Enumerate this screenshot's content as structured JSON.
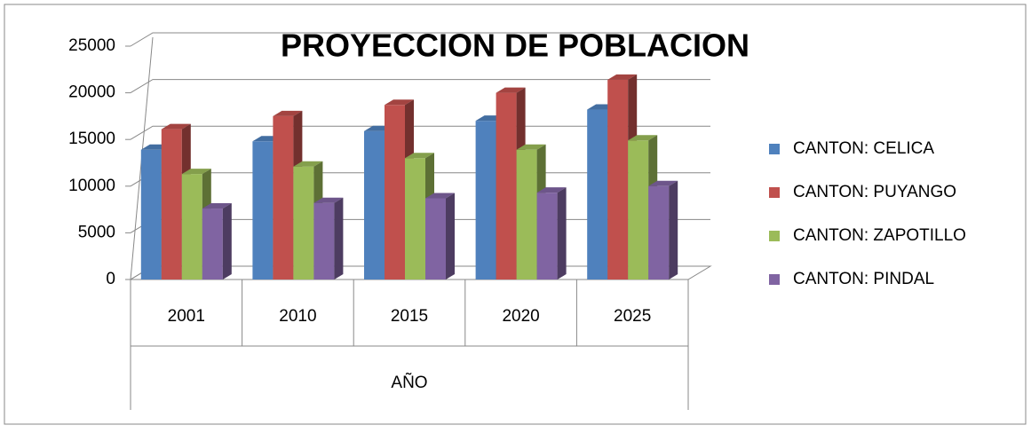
{
  "chart_data": {
    "type": "bar3d",
    "title": "PROYECCION DE POBLACION",
    "x_label": "AÑO",
    "categories": [
      "2001",
      "2010",
      "2015",
      "2020",
      "2025"
    ],
    "series": [
      {
        "name": "CANTON: CELICA",
        "color": "#4f81bd",
        "values": [
          13900,
          14800,
          15900,
          17000,
          18200
        ]
      },
      {
        "name": "CANTON: PUYANGO",
        "color": "#c0504d",
        "values": [
          16100,
          17500,
          18700,
          20000,
          21400
        ]
      },
      {
        "name": "CANTON: ZAPOTILLO",
        "color": "#9bbb59",
        "values": [
          11300,
          12100,
          13000,
          13900,
          14900
        ]
      },
      {
        "name": "CANTON: PINDAL",
        "color": "#8064a2",
        "values": [
          7600,
          8200,
          8700,
          9300,
          10000
        ]
      }
    ],
    "ylim": [
      0,
      25000
    ],
    "yticks": [
      0,
      5000,
      10000,
      15000,
      20000,
      25000
    ],
    "grid": true,
    "legend": "right"
  }
}
